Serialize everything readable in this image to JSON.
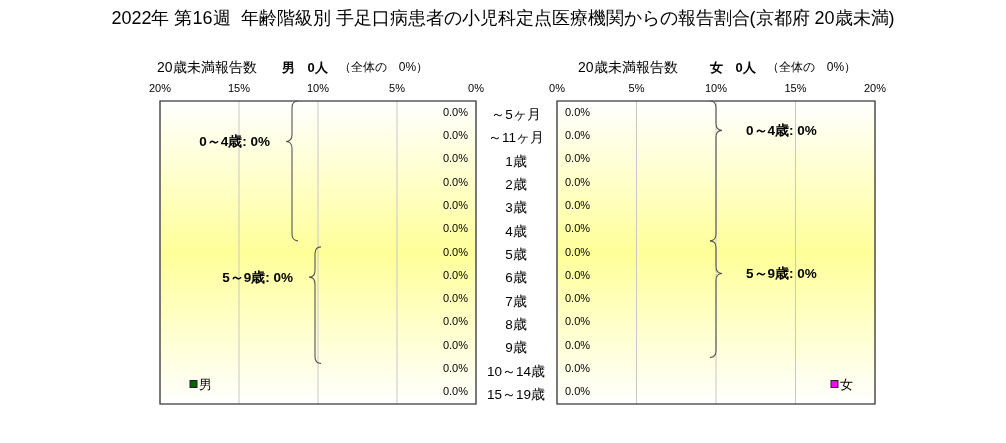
{
  "chart_data": [
    {
      "type": "bar",
      "orientation": "horizontal",
      "title": "2022年 第16週  年齢階級別 手足口病患者の小児科定点医療機関からの報告割合(京都府 20歳未満)",
      "subtitle": "20歳未満報告数",
      "annotations": [
        "男　0人",
        "（全体の　0%）",
        "0～4歳: 0%",
        "5～9歳: 0%"
      ],
      "categories": [
        "～5ヶ月",
        "～11ヶ月",
        "1歳",
        "2歳",
        "3歳",
        "4歳",
        "5歳",
        "6歳",
        "7歳",
        "8歳",
        "9歳",
        "10～14歳",
        "15～19歳"
      ],
      "series": [
        {
          "name": "男",
          "color": "#006400",
          "values": [
            0,
            0,
            0,
            0,
            0,
            0,
            0,
            0,
            0,
            0,
            0,
            0,
            0
          ],
          "value_labels": [
            "0.0%",
            "0.0%",
            "0.0%",
            "0.0%",
            "0.0%",
            "0.0%",
            "0.0%",
            "0.0%",
            "0.0%",
            "0.0%",
            "0.0%",
            "0.0%",
            "0.0%"
          ]
        }
      ],
      "xlim": [
        20,
        0
      ],
      "xticks": [
        {
          "value": 20,
          "label": "20%"
        },
        {
          "value": 15,
          "label": "15%"
        },
        {
          "value": 10,
          "label": "10%"
        },
        {
          "value": 5,
          "label": "5%"
        },
        {
          "value": 0,
          "label": "0%"
        }
      ],
      "grid": "x",
      "legend": "bottom left"
    },
    {
      "type": "bar",
      "orientation": "horizontal",
      "subtitle": "20歳未満報告数",
      "annotations": [
        "女　0人",
        "（全体の　0%）",
        "0～4歳: 0%",
        "5～9歳: 0%"
      ],
      "categories": [
        null,
        null,
        null,
        null,
        null,
        null,
        null,
        null,
        null,
        null,
        null,
        null,
        null
      ],
      "series": [
        {
          "name": "女",
          "color": "#ff00ff",
          "values": [
            0,
            0,
            0,
            0,
            0,
            0,
            0,
            0,
            0,
            0,
            0,
            0,
            0
          ],
          "value_labels": [
            "0.0%",
            "0.0%",
            "0.0%",
            "0.0%",
            "0.0%",
            "0.0%",
            "0.0%",
            "0.0%",
            "0.0%",
            "0.0%",
            "0.0%",
            "0.0%",
            "0.0%"
          ]
        }
      ],
      "xlim": [
        0,
        20
      ],
      "xticks": [
        {
          "value": 0,
          "label": "0%"
        },
        {
          "value": 5,
          "label": "5%"
        },
        {
          "value": 10,
          "label": "10%"
        },
        {
          "value": 15,
          "label": "15%"
        },
        {
          "value": 20,
          "label": "20%"
        }
      ],
      "grid": "x",
      "legend": "bottom right"
    }
  ]
}
